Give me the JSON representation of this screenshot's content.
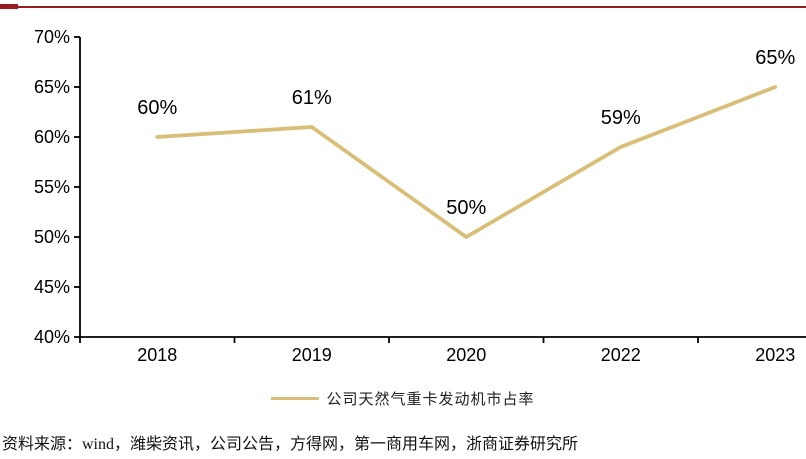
{
  "accent_colors": {
    "top_rule_red": "#981B1E",
    "line_gold": "#D9BE78",
    "axis_black": "#000000"
  },
  "chart_data": {
    "type": "line",
    "categories": [
      "2018",
      "2019",
      "2020",
      "2022",
      "2023"
    ],
    "series": [
      {
        "name": "公司天然气重卡发动机市占率",
        "values": [
          60,
          61,
          50,
          59,
          65
        ]
      }
    ],
    "data_labels": [
      "60%",
      "61%",
      "50%",
      "59%",
      "65%"
    ],
    "title": "",
    "xlabel": "",
    "ylabel": "",
    "ylim": [
      40,
      70
    ],
    "y_step": 5,
    "y_tick_labels": [
      "70%",
      "65%",
      "60%",
      "55%",
      "50%",
      "45%",
      "40%"
    ],
    "grid": false,
    "legend_position": "bottom",
    "line_color": "#D9BE78"
  },
  "legend": {
    "label": "公司天然气重卡发动机市占率",
    "swatch_color": "#D9BE78"
  },
  "source": {
    "text": "资料来源：wind，潍柴资讯，公司公告，方得网，第一商用车网，浙商证券研究所"
  }
}
